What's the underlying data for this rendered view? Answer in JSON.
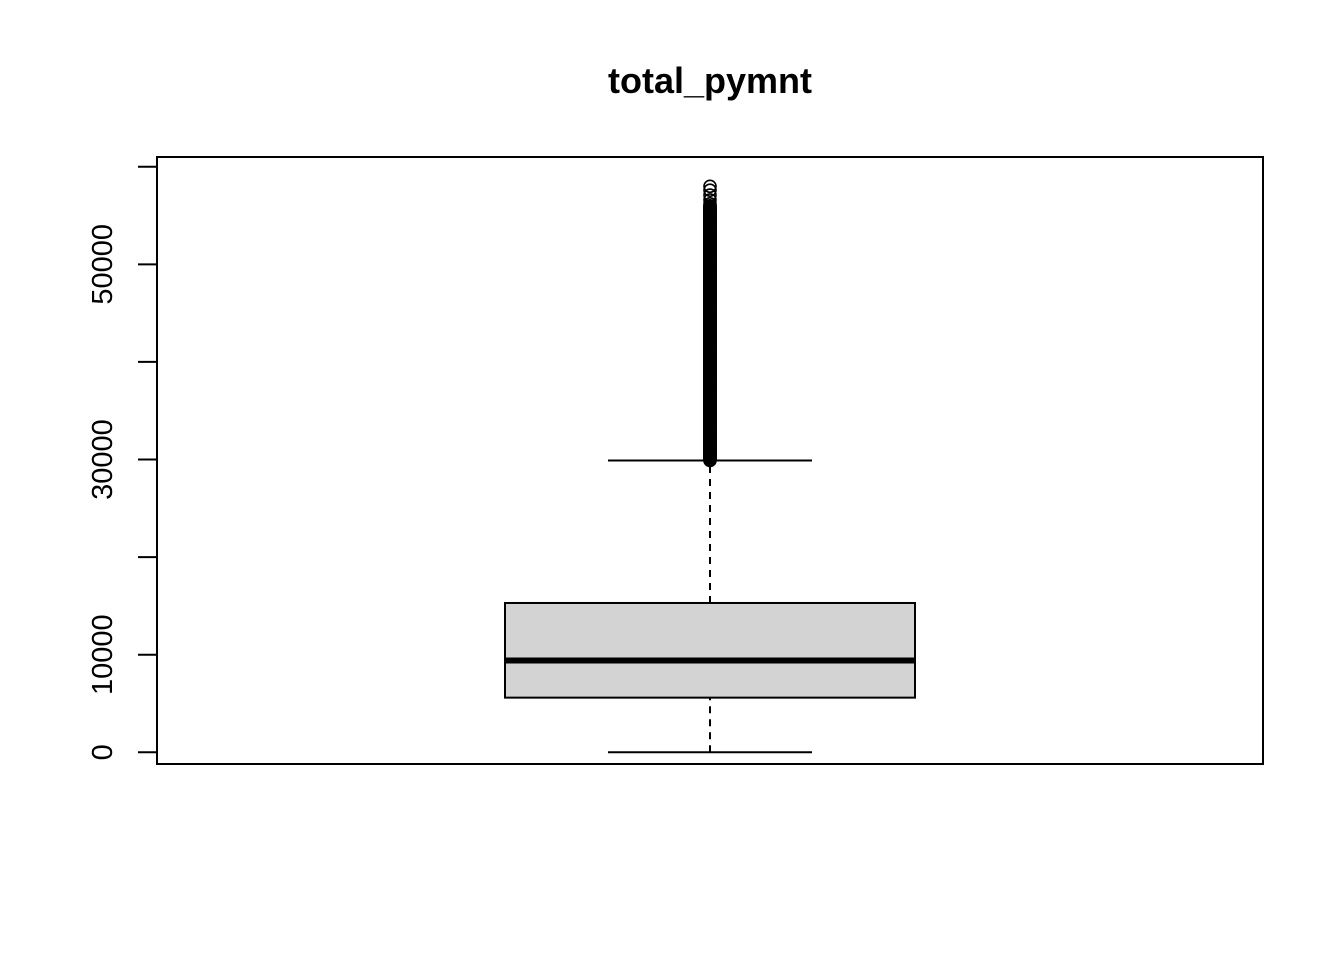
{
  "chart_data": {
    "type": "boxplot",
    "title": "total_pymnt",
    "xlabel": "",
    "ylabel": "",
    "ylim": [
      -1200,
      61000
    ],
    "y_ticks": [
      0,
      10000,
      20000,
      30000,
      40000,
      50000,
      60000
    ],
    "y_tick_labels": [
      "0",
      "10000",
      "",
      "30000",
      "",
      "50000",
      ""
    ],
    "box": {
      "lower_whisker": 0,
      "q1": 5600,
      "median": 9400,
      "q3": 15300,
      "upper_whisker": 29900
    },
    "outliers": {
      "range": [
        29900,
        58000
      ],
      "dense_until": 56000,
      "sparse_values": [
        56200,
        56600,
        57100,
        57600,
        58000
      ]
    },
    "colors": {
      "box_fill": "#d3d3d3",
      "stroke": "#000000"
    },
    "grid": false
  }
}
